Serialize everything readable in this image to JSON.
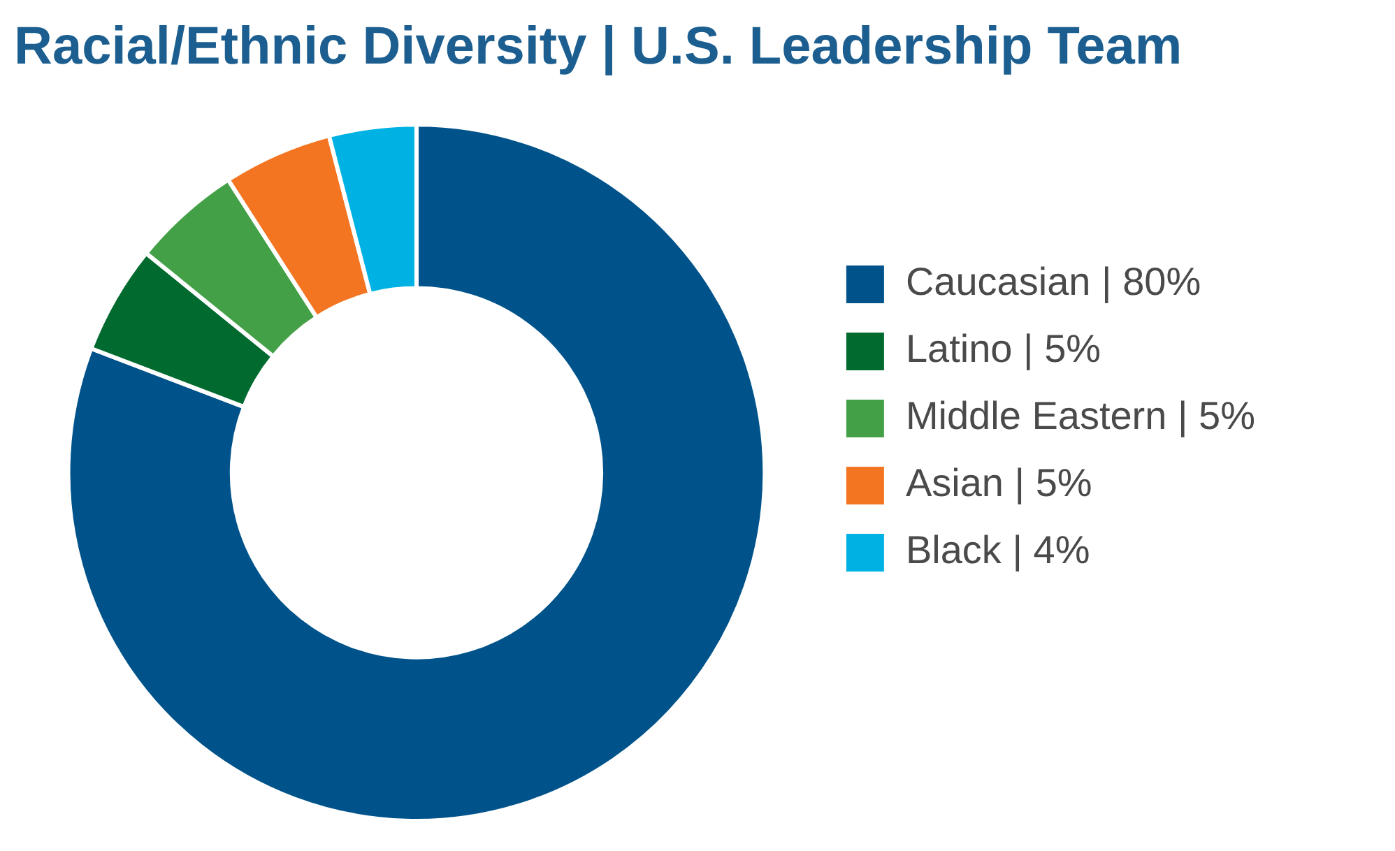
{
  "chart_data": {
    "type": "donut",
    "title": "Racial/Ethnic Diversity | U.S. Leadership Team",
    "categories": [
      "Caucasian | 80%",
      "Latino | 5%",
      "Middle Eastern | 5%",
      "Asian | 5%",
      "Black | 4%"
    ],
    "values": [
      80,
      5,
      5,
      5,
      4
    ],
    "colors": [
      "#00538a",
      "#006a2f",
      "#43a047",
      "#f47521",
      "#00b2e3"
    ],
    "legend": "right"
  }
}
